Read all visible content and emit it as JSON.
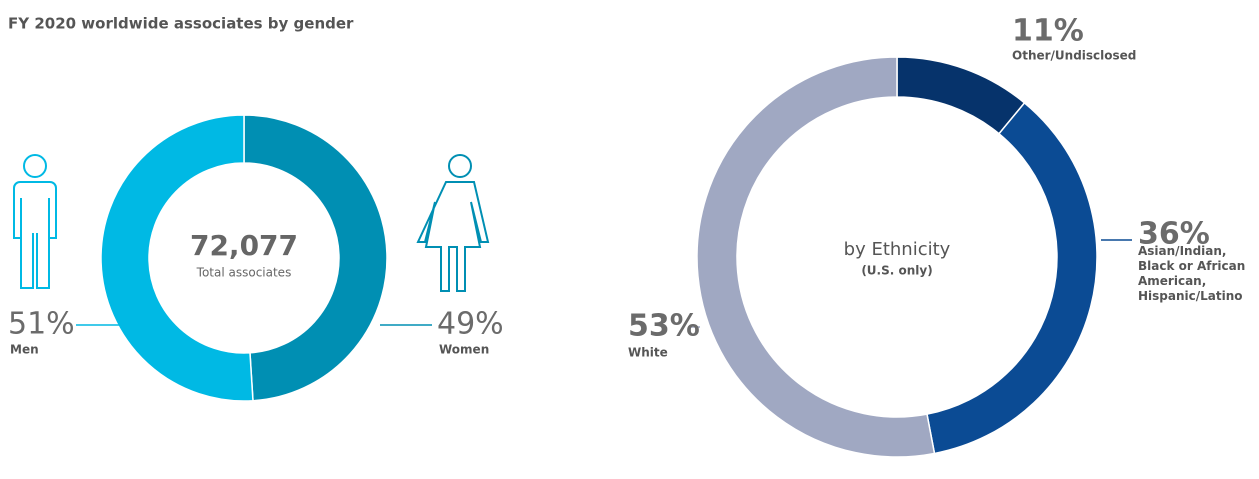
{
  "chart_data": [
    {
      "type": "pie",
      "donut": true,
      "title": "FY 2020 worldwide associates by gender",
      "center_text": [
        "72,077",
        "Total associates"
      ],
      "categories": [
        "Women",
        "Men"
      ],
      "values": [
        49,
        51
      ],
      "value_labels": [
        "49%",
        "51%"
      ],
      "colors": [
        "#008fb3",
        "#00b9e4"
      ]
    },
    {
      "type": "pie",
      "donut": true,
      "center_text": [
        "by Ethnicity",
        "(U.S. only)"
      ],
      "categories": [
        "Other/Undisclosed",
        "Asian/Indian, Black or African American, Hispanic/Latino",
        "White"
      ],
      "values": [
        11,
        36,
        53
      ],
      "value_labels": [
        "11%",
        "36%",
        "53%"
      ],
      "colors": [
        "#06336b",
        "#0b4b94",
        "#a0a8c2"
      ]
    }
  ]
}
